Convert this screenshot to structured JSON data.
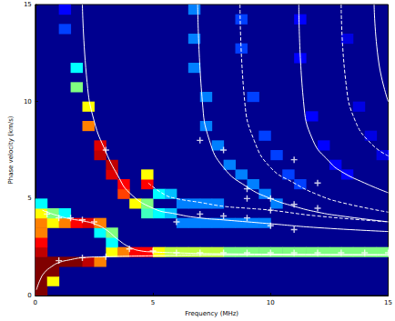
{
  "chart_data": {
    "type": "heatmap",
    "x_label": "Frequency (MHz)",
    "y_label": "Phase velocity (km/s)",
    "xlim": [
      0,
      15
    ],
    "ylim": [
      0,
      15
    ],
    "xticks": [
      0,
      5,
      10,
      15
    ],
    "yticks": [
      0,
      5,
      10,
      15
    ],
    "grid": false,
    "heatmap": {
      "cell_size": [
        0.5,
        0.5
      ],
      "color_range": [
        0,
        1
      ],
      "cells": [
        [
          0.25,
          0.25,
          1
        ],
        [
          0.25,
          0.75,
          1
        ],
        [
          0.25,
          1.25,
          1
        ],
        [
          0.25,
          1.75,
          1
        ],
        [
          0.25,
          2.25,
          0.9
        ],
        [
          0.25,
          2.75,
          0.8
        ],
        [
          0.25,
          3.25,
          0.7
        ],
        [
          0.25,
          3.75,
          0.7
        ],
        [
          0.25,
          4.25,
          0.6
        ],
        [
          0.25,
          4.75,
          0.4
        ],
        [
          0.75,
          0.75,
          0.6
        ],
        [
          0.75,
          1.25,
          1
        ],
        [
          0.75,
          1.75,
          1
        ],
        [
          0.75,
          3.75,
          0.6
        ],
        [
          0.75,
          4.25,
          0.5
        ],
        [
          1.25,
          1.75,
          1
        ],
        [
          1.25,
          3.75,
          0.7
        ],
        [
          1.25,
          4.25,
          0.4
        ],
        [
          1.25,
          13.75,
          0.25
        ],
        [
          1.25,
          14.75,
          0.2
        ],
        [
          1.75,
          1.75,
          1
        ],
        [
          1.75,
          3.75,
          0.8
        ],
        [
          1.75,
          10.75,
          0.5
        ],
        [
          1.75,
          11.75,
          0.4
        ],
        [
          2.25,
          1.75,
          0.9
        ],
        [
          2.25,
          3.75,
          0.85
        ],
        [
          2.25,
          8.75,
          0.7
        ],
        [
          2.25,
          9.75,
          0.6
        ],
        [
          2.75,
          1.75,
          0.7
        ],
        [
          2.75,
          3.25,
          0.4
        ],
        [
          2.75,
          3.75,
          0.7
        ],
        [
          2.75,
          7.25,
          0.9
        ],
        [
          2.75,
          7.75,
          0.85
        ],
        [
          3.25,
          2.25,
          0.6
        ],
        [
          3.25,
          2.75,
          0.4
        ],
        [
          3.25,
          3.25,
          0.5
        ],
        [
          3.25,
          6.25,
          0.85
        ],
        [
          3.25,
          6.75,
          0.9
        ],
        [
          3.75,
          2.25,
          0.7
        ],
        [
          3.75,
          5.25,
          0.75
        ],
        [
          3.75,
          5.75,
          0.8
        ],
        [
          4.25,
          2.25,
          0.8
        ],
        [
          4.25,
          4.75,
          0.6
        ],
        [
          4.75,
          2.25,
          0.8
        ],
        [
          4.75,
          4.25,
          0.45
        ],
        [
          4.75,
          4.75,
          0.5
        ],
        [
          4.75,
          5.75,
          0.8
        ],
        [
          4.75,
          6.25,
          0.6
        ],
        [
          5.25,
          2.25,
          0.6
        ],
        [
          5.25,
          4.25,
          0.4
        ],
        [
          5.25,
          5.25,
          0.4
        ],
        [
          5.75,
          2.25,
          0.55
        ],
        [
          5.75,
          4.25,
          0.35
        ],
        [
          5.75,
          5.25,
          0.35
        ],
        [
          6.25,
          2.25,
          0.55
        ],
        [
          6.25,
          3.75,
          0.3
        ],
        [
          6.25,
          4.75,
          0.3
        ],
        [
          6.75,
          2.25,
          0.55
        ],
        [
          6.75,
          3.75,
          0.3
        ],
        [
          6.75,
          4.75,
          0.3
        ],
        [
          6.75,
          11.75,
          0.3
        ],
        [
          6.75,
          13.25,
          0.3
        ],
        [
          6.75,
          14.75,
          0.3
        ],
        [
          7.25,
          2.25,
          0.55
        ],
        [
          7.25,
          3.75,
          0.3
        ],
        [
          7.25,
          4.75,
          0.3
        ],
        [
          7.25,
          8.75,
          0.3
        ],
        [
          7.25,
          10.25,
          0.3
        ],
        [
          7.75,
          2.25,
          0.55
        ],
        [
          7.75,
          3.75,
          0.3
        ],
        [
          7.75,
          4.75,
          0.3
        ],
        [
          7.75,
          7.75,
          0.3
        ],
        [
          8.25,
          2.25,
          0.5
        ],
        [
          8.25,
          3.75,
          0.3
        ],
        [
          8.25,
          6.75,
          0.3
        ],
        [
          8.75,
          2.25,
          0.5
        ],
        [
          8.75,
          3.75,
          0.3
        ],
        [
          8.75,
          6.25,
          0.3
        ],
        [
          8.75,
          12.75,
          0.25
        ],
        [
          8.75,
          14.25,
          0.25
        ],
        [
          9.25,
          2.25,
          0.5
        ],
        [
          9.25,
          3.75,
          0.3
        ],
        [
          9.25,
          5.75,
          0.3
        ],
        [
          9.25,
          10.25,
          0.25
        ],
        [
          9.75,
          2.25,
          0.5
        ],
        [
          9.75,
          3.75,
          0.3
        ],
        [
          9.75,
          5.25,
          0.3
        ],
        [
          9.75,
          8.25,
          0.25
        ],
        [
          10.25,
          2.25,
          0.5
        ],
        [
          10.25,
          4.75,
          0.3
        ],
        [
          10.25,
          7.25,
          0.25
        ],
        [
          10.75,
          2.25,
          0.5
        ],
        [
          10.75,
          6.25,
          0.25
        ],
        [
          11.25,
          2.25,
          0.5
        ],
        [
          11.25,
          5.75,
          0.25
        ],
        [
          11.25,
          12.25,
          0.2
        ],
        [
          11.25,
          14.25,
          0.2
        ],
        [
          11.75,
          2.25,
          0.5
        ],
        [
          11.75,
          9.25,
          0.2
        ],
        [
          12.25,
          2.25,
          0.5
        ],
        [
          12.25,
          7.75,
          0.2
        ],
        [
          12.75,
          2.25,
          0.5
        ],
        [
          12.75,
          6.75,
          0.2
        ],
        [
          13.25,
          2.25,
          0.5
        ],
        [
          13.25,
          6.25,
          0.2
        ],
        [
          13.25,
          13.25,
          0.15
        ],
        [
          13.75,
          2.25,
          0.5
        ],
        [
          13.75,
          9.75,
          0.15
        ],
        [
          14.25,
          2.25,
          0.5
        ],
        [
          14.25,
          8.25,
          0.15
        ],
        [
          14.75,
          2.25,
          0.5
        ],
        [
          14.75,
          7.25,
          0.15
        ]
      ]
    },
    "series": [
      {
        "type": "line",
        "color": "#ffffff",
        "line_style": "solid",
        "x": [
          0.05,
          0.2,
          0.4,
          0.7,
          1,
          1.5,
          2,
          3,
          5,
          8,
          15
        ],
        "values": [
          0.3,
          0.8,
          1.2,
          1.5,
          1.7,
          1.85,
          1.95,
          2.0,
          2.05,
          2.1,
          2.1
        ]
      },
      {
        "type": "line",
        "color": "#ffffff",
        "line_style": "solid",
        "x": [
          0.3,
          0.5,
          1,
          1.5,
          2,
          2.5,
          3,
          3.5,
          4,
          4.5,
          5,
          6,
          8,
          15
        ],
        "values": [
          4.4,
          4.3,
          4.1,
          3.95,
          3.85,
          3.7,
          3.4,
          2.9,
          2.5,
          2.3,
          2.25,
          2.2,
          2.15,
          2.1
        ]
      },
      {
        "type": "line",
        "color": "#ffffff",
        "line_style": "solid",
        "x": [
          2.0,
          2.2,
          2.5,
          3,
          3.5,
          4,
          5,
          6,
          7,
          8,
          10,
          12,
          15
        ],
        "values": [
          15,
          11,
          9,
          7.4,
          6.2,
          5.3,
          4.5,
          4.2,
          4.0,
          3.9,
          3.7,
          3.5,
          3.3
        ]
      },
      {
        "type": "line",
        "color": "#ffffff",
        "line_style": "dashed",
        "x": [
          4.8,
          5.5,
          6,
          7,
          8,
          9,
          10,
          12,
          15
        ],
        "values": [
          5.8,
          5.2,
          5.0,
          4.8,
          4.6,
          4.5,
          4.4,
          4.1,
          3.8
        ]
      },
      {
        "type": "line",
        "color": "#ffffff",
        "line_style": "solid",
        "x": [
          6.9,
          7.1,
          7.4,
          8,
          9,
          10,
          11,
          12,
          13,
          15
        ],
        "values": [
          15,
          10,
          8,
          6.6,
          5.6,
          5.0,
          4.6,
          4.3,
          4.1,
          3.8
        ]
      },
      {
        "type": "line",
        "color": "#ffffff",
        "line_style": "dashed",
        "x": [
          8.7,
          8.9,
          9.3,
          10,
          11,
          12,
          13,
          15
        ],
        "values": [
          15,
          10,
          8,
          6.6,
          5.8,
          5.2,
          4.8,
          4.3
        ]
      },
      {
        "type": "line",
        "color": "#ffffff",
        "line_style": "solid",
        "x": [
          11.2,
          11.4,
          11.8,
          12.5,
          13,
          14,
          15
        ],
        "values": [
          15,
          10,
          8,
          6.9,
          6.4,
          5.8,
          5.3
        ]
      },
      {
        "type": "line",
        "color": "#ffffff",
        "line_style": "dashed",
        "x": [
          13.0,
          13.2,
          13.6,
          14.3,
          15
        ],
        "values": [
          15,
          11,
          9,
          7.8,
          7.2
        ]
      },
      {
        "type": "line",
        "color": "#ffffff",
        "line_style": "solid",
        "x": [
          14.4,
          14.6,
          15
        ],
        "values": [
          15,
          12,
          10
        ]
      },
      {
        "type": "scatter",
        "color": "#ffffff",
        "marker": "plus",
        "x": [
          0.5,
          1,
          1.5,
          2,
          2.5,
          3,
          1,
          2,
          3,
          4,
          5,
          6,
          6,
          7,
          7,
          7,
          8,
          8,
          8,
          9,
          9,
          9,
          9,
          10,
          10,
          10,
          10,
          11,
          11,
          11,
          11,
          12,
          12,
          12,
          13,
          14,
          15
        ],
        "values": [
          4.2,
          4.0,
          4.0,
          3.9,
          3.8,
          7.5,
          1.8,
          1.95,
          2.0,
          2.4,
          2.3,
          3.8,
          2.2,
          8.0,
          4.2,
          2.2,
          7.5,
          4.1,
          2.2,
          5.5,
          5.0,
          4.0,
          2.2,
          5.0,
          4.4,
          3.6,
          2.2,
          7.0,
          4.7,
          3.4,
          2.2,
          5.8,
          4.5,
          2.2,
          2.2,
          2.2,
          2.2
        ]
      }
    ]
  }
}
